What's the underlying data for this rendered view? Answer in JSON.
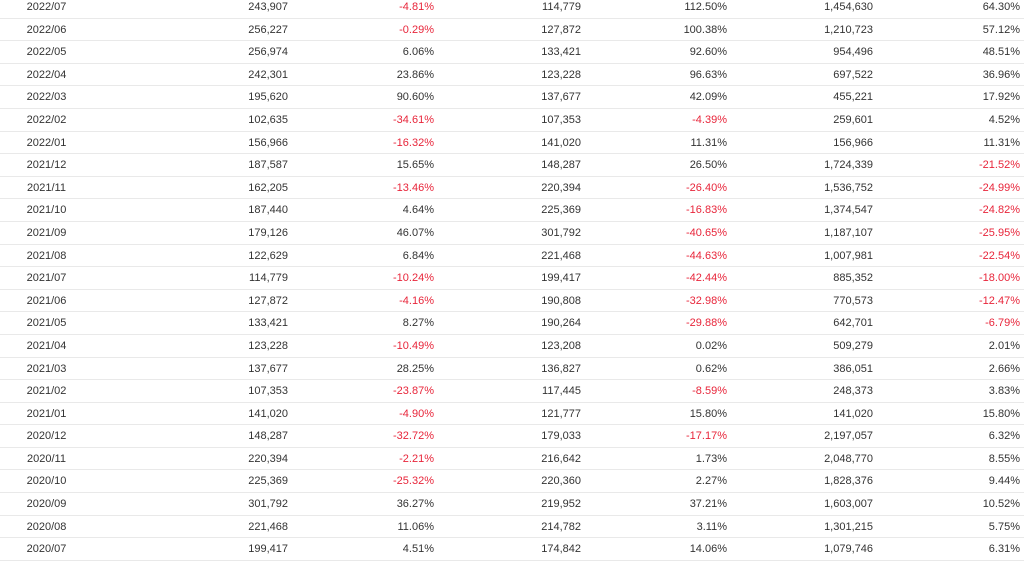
{
  "colors": {
    "text": "#333333",
    "negative": "#e8253a",
    "divider": "#e9e9e9"
  },
  "rows": [
    [
      "2022/07",
      "243,907",
      "-4.81%",
      "114,779",
      "112.50%",
      "1,454,630",
      "64.30%"
    ],
    [
      "2022/06",
      "256,227",
      "-0.29%",
      "127,872",
      "100.38%",
      "1,210,723",
      "57.12%"
    ],
    [
      "2022/05",
      "256,974",
      "6.06%",
      "133,421",
      "92.60%",
      "954,496",
      "48.51%"
    ],
    [
      "2022/04",
      "242,301",
      "23.86%",
      "123,228",
      "96.63%",
      "697,522",
      "36.96%"
    ],
    [
      "2022/03",
      "195,620",
      "90.60%",
      "137,677",
      "42.09%",
      "455,221",
      "17.92%"
    ],
    [
      "2022/02",
      "102,635",
      "-34.61%",
      "107,353",
      "-4.39%",
      "259,601",
      "4.52%"
    ],
    [
      "2022/01",
      "156,966",
      "-16.32%",
      "141,020",
      "11.31%",
      "156,966",
      "11.31%"
    ],
    [
      "2021/12",
      "187,587",
      "15.65%",
      "148,287",
      "26.50%",
      "1,724,339",
      "-21.52%"
    ],
    [
      "2021/11",
      "162,205",
      "-13.46%",
      "220,394",
      "-26.40%",
      "1,536,752",
      "-24.99%"
    ],
    [
      "2021/10",
      "187,440",
      "4.64%",
      "225,369",
      "-16.83%",
      "1,374,547",
      "-24.82%"
    ],
    [
      "2021/09",
      "179,126",
      "46.07%",
      "301,792",
      "-40.65%",
      "1,187,107",
      "-25.95%"
    ],
    [
      "2021/08",
      "122,629",
      "6.84%",
      "221,468",
      "-44.63%",
      "1,007,981",
      "-22.54%"
    ],
    [
      "2021/07",
      "114,779",
      "-10.24%",
      "199,417",
      "-42.44%",
      "885,352",
      "-18.00%"
    ],
    [
      "2021/06",
      "127,872",
      "-4.16%",
      "190,808",
      "-32.98%",
      "770,573",
      "-12.47%"
    ],
    [
      "2021/05",
      "133,421",
      "8.27%",
      "190,264",
      "-29.88%",
      "642,701",
      "-6.79%"
    ],
    [
      "2021/04",
      "123,228",
      "-10.49%",
      "123,208",
      "0.02%",
      "509,279",
      "2.01%"
    ],
    [
      "2021/03",
      "137,677",
      "28.25%",
      "136,827",
      "0.62%",
      "386,051",
      "2.66%"
    ],
    [
      "2021/02",
      "107,353",
      "-23.87%",
      "117,445",
      "-8.59%",
      "248,373",
      "3.83%"
    ],
    [
      "2021/01",
      "141,020",
      "-4.90%",
      "121,777",
      "15.80%",
      "141,020",
      "15.80%"
    ],
    [
      "2020/12",
      "148,287",
      "-32.72%",
      "179,033",
      "-17.17%",
      "2,197,057",
      "6.32%"
    ],
    [
      "2020/11",
      "220,394",
      "-2.21%",
      "216,642",
      "1.73%",
      "2,048,770",
      "8.55%"
    ],
    [
      "2020/10",
      "225,369",
      "-25.32%",
      "220,360",
      "2.27%",
      "1,828,376",
      "9.44%"
    ],
    [
      "2020/09",
      "301,792",
      "36.27%",
      "219,952",
      "37.21%",
      "1,603,007",
      "10.52%"
    ],
    [
      "2020/08",
      "221,468",
      "11.06%",
      "214,782",
      "3.11%",
      "1,301,215",
      "5.75%"
    ],
    [
      "2020/07",
      "199,417",
      "4.51%",
      "174,842",
      "14.06%",
      "1,079,746",
      "6.31%"
    ]
  ]
}
